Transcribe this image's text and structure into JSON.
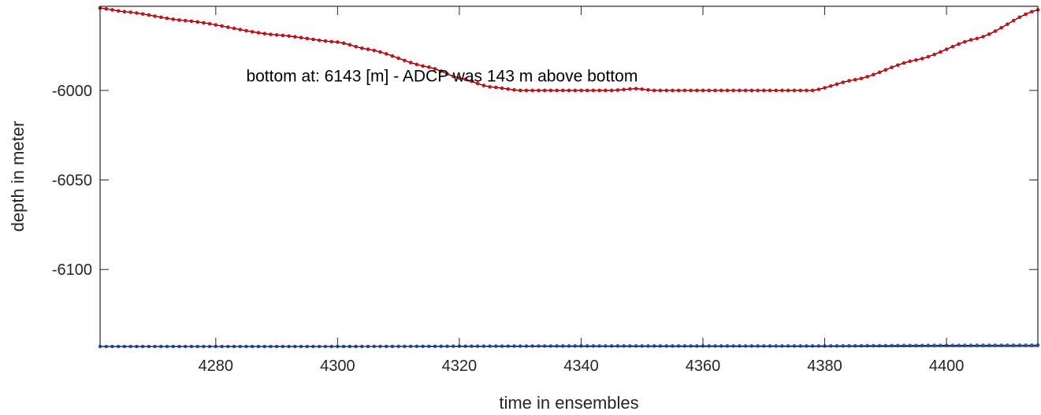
{
  "chart_data": {
    "type": "scatter",
    "title": "",
    "xlabel": "time in ensembles",
    "ylabel": "depth in meter",
    "xlim": [
      4261,
      4415
    ],
    "ylim": [
      -6143,
      -5953
    ],
    "xticks": [
      4280,
      4300,
      4320,
      4340,
      4360,
      4380,
      4400
    ],
    "xtick_labels": [
      "4280",
      "4300",
      "4320",
      "4340",
      "4360",
      "4380",
      "4400"
    ],
    "yticks": [
      -6000,
      -6050,
      -6100
    ],
    "ytick_labels": [
      "-6000",
      "-6050",
      "-6100"
    ],
    "grid": false,
    "legend": "none",
    "annotation": "bottom at: 6143 [m] - ADCP was 143 m above bottom",
    "annotation_position": {
      "x": 4285,
      "y": -5992
    },
    "series": [
      {
        "role": "surface-profile",
        "marker": "dot",
        "color": "#e8000b",
        "line_color": "#000000",
        "x_step": 1,
        "x_start": 4261,
        "breakpoints": [
          [
            4261,
            -5954
          ],
          [
            4265,
            -5956
          ],
          [
            4275,
            -5961
          ],
          [
            4290,
            -5969
          ],
          [
            4300,
            -5973
          ],
          [
            4305,
            -5977
          ],
          [
            4315,
            -5987
          ],
          [
            4320,
            -5993
          ],
          [
            4325,
            -5998
          ],
          [
            4330,
            -6000
          ],
          [
            4345,
            -6000
          ],
          [
            4349,
            -5999
          ],
          [
            4352,
            -6000
          ],
          [
            4360,
            -6000
          ],
          [
            4378,
            -6000
          ],
          [
            4385,
            -5994
          ],
          [
            4395,
            -5983
          ],
          [
            4405,
            -5971
          ],
          [
            4415,
            -5955
          ]
        ]
      },
      {
        "role": "bottom-profile",
        "marker": "dot",
        "color": "#1560e8",
        "line_color": "#000000",
        "x_step": 1,
        "x_start": 4261,
        "breakpoints": [
          [
            4261,
            -6143
          ],
          [
            4300,
            -6143
          ],
          [
            4340,
            -6142.7
          ],
          [
            4380,
            -6142.7
          ],
          [
            4400,
            -6142.4
          ],
          [
            4415,
            -6142.3
          ]
        ]
      }
    ],
    "colors": {
      "axis": "#262626",
      "text": "#262626",
      "background": "#ffffff"
    }
  }
}
